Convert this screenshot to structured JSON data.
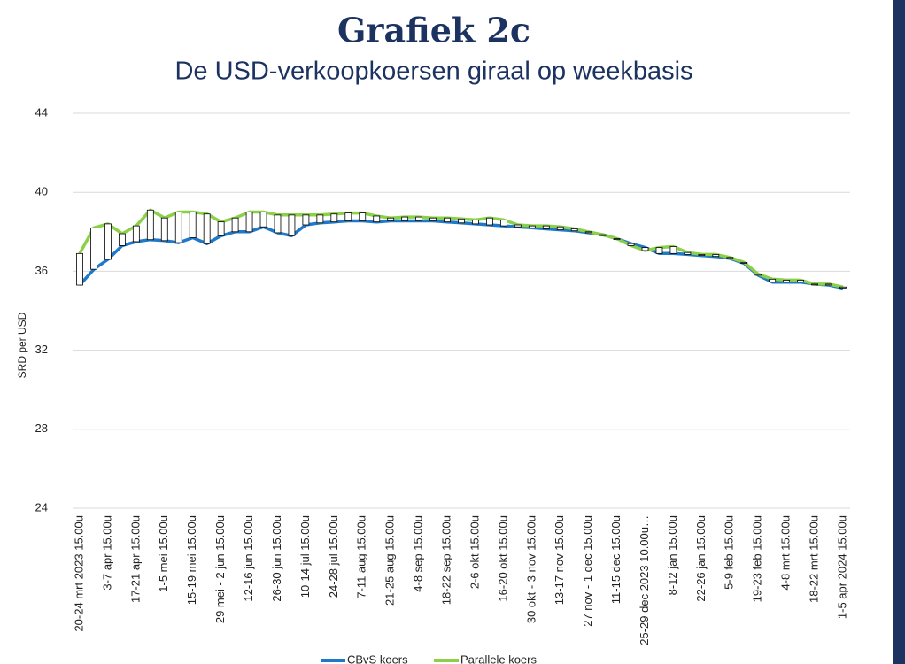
{
  "chart_data": {
    "type": "line",
    "title": "Grafiek 2c",
    "subtitle": "De USD-verkoopkoersen giraal op weekbasis",
    "y_label": "SRD per USD",
    "categories": [
      "20-24 mrt 2023 15.00u",
      null,
      "3-7 apr 15.00u",
      null,
      "17-21 apr 15.00u",
      null,
      "1-5 mei 15.00u",
      null,
      "15-19 mei 15.00u",
      null,
      "29 mei - 2 jun 15.00u",
      null,
      "12-16 jun 15.00u",
      null,
      "26-30 jun 15.00u",
      null,
      "10-14 jul 15.00u",
      null,
      "24-28 jul 15.00u",
      null,
      "7-11 aug 15.00u",
      null,
      "21-25 aug 15.00u",
      null,
      "4-8 sep 15.00u",
      null,
      "18-22 sep 15.00u",
      null,
      "2-6 okt 15.00u",
      null,
      "16-20 okt 15.00u",
      null,
      "30 okt - 3 nov 15.00u",
      null,
      "13-17 nov 15.00u",
      null,
      "27 nov - 1 dec 15.00u",
      null,
      "11-15 dec 15.00u",
      null,
      "25-29 dec 2023 10.00u…",
      null,
      "8-12 jan 15.00u",
      null,
      "22-26 jan 15.00u",
      null,
      "5-9 feb 15.00u",
      null,
      "19-23 feb 15.00u",
      null,
      "4-8 mrt 15.00u",
      null,
      "18-22 mrt 15.00u",
      null,
      "1-5 apr 2024 15.00u"
    ],
    "series": [
      {
        "name": "CBvS koers",
        "color": "#1f78c8",
        "values": [
          35.3,
          36.1,
          36.6,
          37.3,
          37.5,
          37.6,
          37.55,
          37.45,
          37.7,
          37.4,
          37.8,
          38.0,
          38.0,
          38.25,
          37.95,
          37.8,
          38.35,
          38.45,
          38.5,
          38.55,
          38.55,
          38.5,
          38.55,
          38.55,
          38.55,
          38.55,
          38.5,
          38.45,
          38.4,
          38.35,
          38.3,
          38.25,
          38.2,
          38.15,
          38.1,
          38.05,
          37.95,
          37.85,
          37.65,
          37.4,
          37.2,
          36.9,
          36.9,
          36.85,
          36.8,
          36.75,
          36.65,
          36.4,
          35.8,
          35.45,
          35.45,
          35.45,
          35.35,
          35.3,
          35.15
        ]
      },
      {
        "name": "Parallele koers",
        "color": "#8cd04a",
        "values": [
          36.9,
          38.2,
          38.4,
          37.9,
          38.3,
          39.1,
          38.7,
          39.0,
          39.0,
          38.9,
          38.5,
          38.7,
          39.0,
          39.0,
          38.85,
          38.85,
          38.85,
          38.85,
          38.9,
          38.95,
          38.95,
          38.8,
          38.7,
          38.75,
          38.75,
          38.7,
          38.7,
          38.65,
          38.6,
          38.7,
          38.6,
          38.35,
          38.3,
          38.3,
          38.25,
          38.15,
          38.0,
          37.85,
          37.65,
          37.3,
          37.05,
          37.2,
          37.25,
          36.95,
          36.85,
          36.85,
          36.7,
          36.45,
          35.85,
          35.6,
          35.55,
          35.55,
          35.35,
          35.35,
          35.2
        ]
      }
    ],
    "ylim": [
      24,
      44
    ],
    "yticks": [
      24,
      28,
      32,
      36,
      40,
      44
    ],
    "grid": true,
    "up_down_bars": true,
    "legend": "bottom"
  }
}
